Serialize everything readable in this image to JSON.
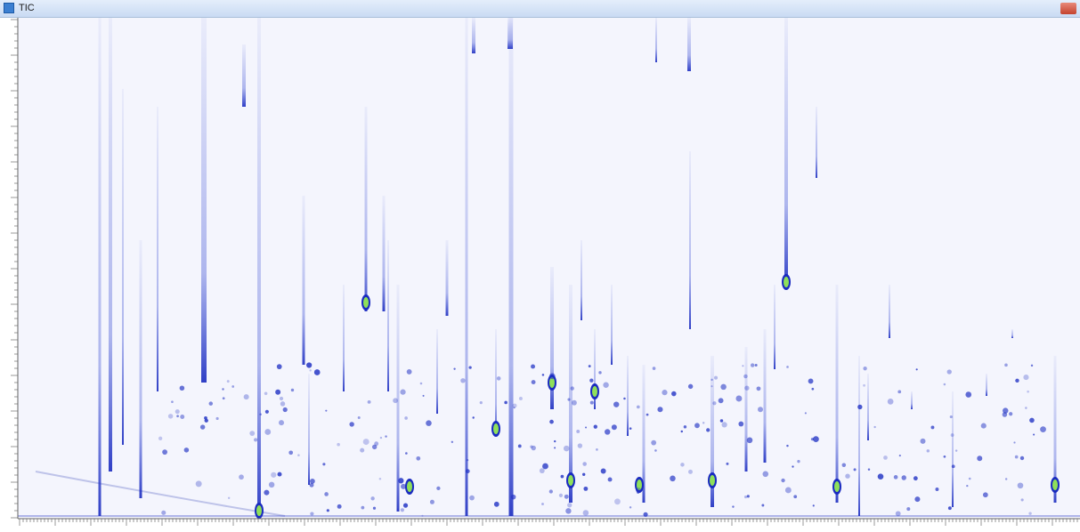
{
  "window": {
    "title": "TIC"
  }
}
